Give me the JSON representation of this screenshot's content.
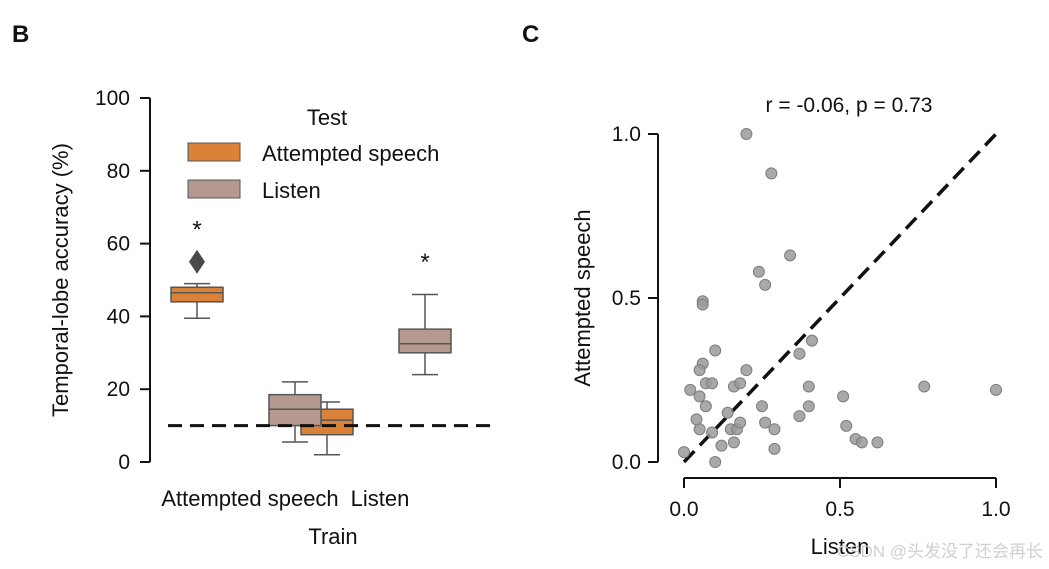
{
  "panel_b": {
    "letter": "B",
    "legend_title": "Test",
    "legend_items": [
      {
        "label": "Attempted speech",
        "color": "#d98238"
      },
      {
        "label": "Listen",
        "color": "#b59990"
      }
    ]
  },
  "panel_c": {
    "letter": "C",
    "annotation": "r = -0.06, p = 0.73"
  },
  "watermark": "CSDN @头发没了还会再长",
  "chart_data": [
    {
      "type": "box",
      "title": "",
      "xlabel": "Train",
      "ylabel": "Temporal-lobe accuracy (%)",
      "categories": [
        "Attempted speech",
        "Listen"
      ],
      "ylim": [
        0,
        100
      ],
      "yticks": [
        "0",
        "20",
        "40",
        "60",
        "80",
        "100"
      ],
      "chance_level": 10,
      "series": [
        {
          "name": "Attempted speech",
          "color": "#d98238",
          "boxes": [
            {
              "min": 39.5,
              "q1": 44,
              "median": 46.5,
              "q3": 48,
              "max": 49,
              "outliers": [
                55
              ]
            },
            {
              "min": 2,
              "q1": 7.5,
              "median": 11.5,
              "q3": 14.5,
              "max": 16.5,
              "outliers": []
            }
          ]
        },
        {
          "name": "Listen",
          "color": "#b59990",
          "boxes": [
            {
              "min": 5.5,
              "q1": 10,
              "median": 14.5,
              "q3": 18.5,
              "max": 22,
              "outliers": []
            },
            {
              "min": 24,
              "q1": 30,
              "median": 32.5,
              "q3": 36.5,
              "max": 46,
              "outliers": []
            }
          ]
        }
      ],
      "significance": [
        {
          "category": "Attempted speech",
          "series": "Attempted speech",
          "label": "*",
          "y": 65
        },
        {
          "category": "Listen",
          "series": "Listen",
          "label": "*",
          "y": 56
        }
      ]
    },
    {
      "type": "scatter",
      "title": "",
      "xlabel": "Listen",
      "ylabel": "Attempted speech",
      "xlim": [
        0,
        1.0
      ],
      "ylim": [
        0,
        1.0
      ],
      "xticks": [
        "0.0",
        "0.5",
        "1.0"
      ],
      "yticks": [
        "0.0",
        "0.5",
        "1.0"
      ],
      "point_color": "#9a9a9a",
      "points": [
        [
          0.0,
          0.03
        ],
        [
          0.1,
          0.0
        ],
        [
          0.2,
          1.0
        ],
        [
          0.28,
          0.88
        ],
        [
          0.34,
          0.63
        ],
        [
          0.24,
          0.58
        ],
        [
          0.26,
          0.54
        ],
        [
          0.06,
          0.49
        ],
        [
          0.06,
          0.48
        ],
        [
          0.1,
          0.34
        ],
        [
          0.41,
          0.37
        ],
        [
          0.37,
          0.33
        ],
        [
          0.06,
          0.3
        ],
        [
          0.05,
          0.28
        ],
        [
          0.2,
          0.28
        ],
        [
          0.07,
          0.24
        ],
        [
          0.09,
          0.24
        ],
        [
          0.16,
          0.23
        ],
        [
          0.18,
          0.24
        ],
        [
          0.02,
          0.22
        ],
        [
          0.4,
          0.23
        ],
        [
          0.05,
          0.2
        ],
        [
          0.77,
          0.23
        ],
        [
          1.0,
          0.22
        ],
        [
          0.51,
          0.2
        ],
        [
          0.07,
          0.17
        ],
        [
          0.25,
          0.17
        ],
        [
          0.4,
          0.17
        ],
        [
          0.14,
          0.15
        ],
        [
          0.37,
          0.14
        ],
        [
          0.26,
          0.12
        ],
        [
          0.52,
          0.11
        ],
        [
          0.29,
          0.1
        ],
        [
          0.05,
          0.1
        ],
        [
          0.15,
          0.1
        ],
        [
          0.17,
          0.1
        ],
        [
          0.18,
          0.12
        ],
        [
          0.09,
          0.09
        ],
        [
          0.55,
          0.07
        ],
        [
          0.57,
          0.06
        ],
        [
          0.62,
          0.06
        ],
        [
          0.12,
          0.05
        ],
        [
          0.16,
          0.06
        ],
        [
          0.29,
          0.04
        ],
        [
          0.04,
          0.13
        ]
      ],
      "reference_line": {
        "style": "dashed",
        "from": [
          0,
          0
        ],
        "to": [
          1,
          1
        ]
      },
      "annotation": "r = -0.06, p = 0.73"
    }
  ]
}
